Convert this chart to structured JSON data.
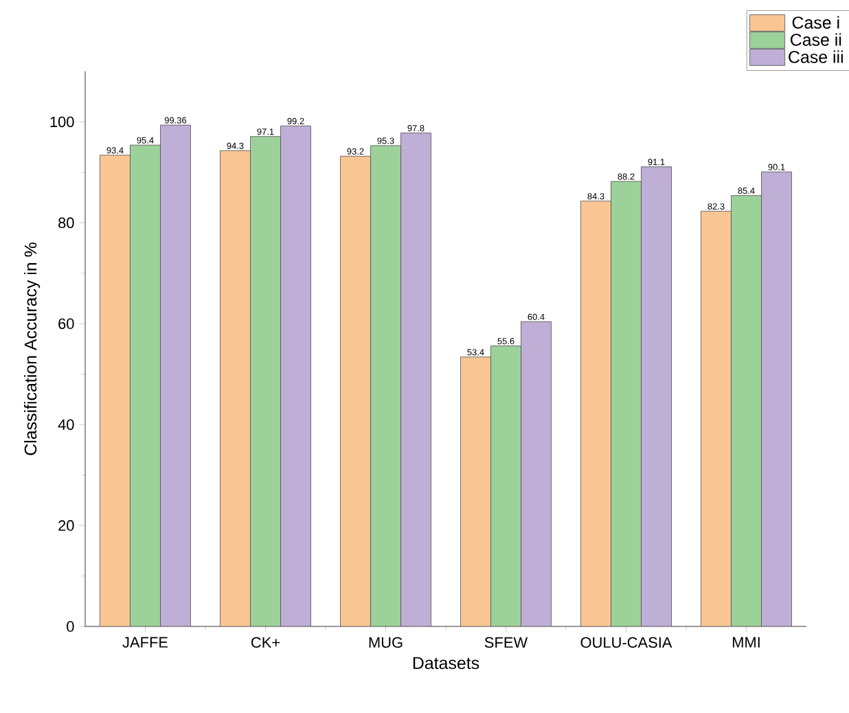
{
  "chart_data": {
    "type": "bar",
    "xlabel": "Datasets",
    "ylabel": "Classification Accuracy in %",
    "categories": [
      "JAFFE",
      "CK+",
      "MUG",
      "SFEW",
      "OULU-CASIA",
      "MMI"
    ],
    "series": [
      {
        "name": "Case i",
        "color": "#f9c693",
        "values": [
          93.4,
          94.3,
          93.2,
          53.4,
          84.3,
          82.3
        ]
      },
      {
        "name": "Case ii",
        "color": "#9dd19a",
        "values": [
          95.4,
          97.1,
          95.3,
          55.6,
          88.2,
          85.4
        ]
      },
      {
        "name": "Case iii",
        "color": "#bfaed6",
        "values": [
          99.36,
          99.2,
          97.8,
          60.4,
          91.1,
          90.1
        ]
      }
    ],
    "ylim": [
      0,
      110
    ],
    "yticks": [
      0,
      20,
      40,
      60,
      80,
      100
    ],
    "data_labels": true,
    "legend": "top right",
    "grid": false
  }
}
